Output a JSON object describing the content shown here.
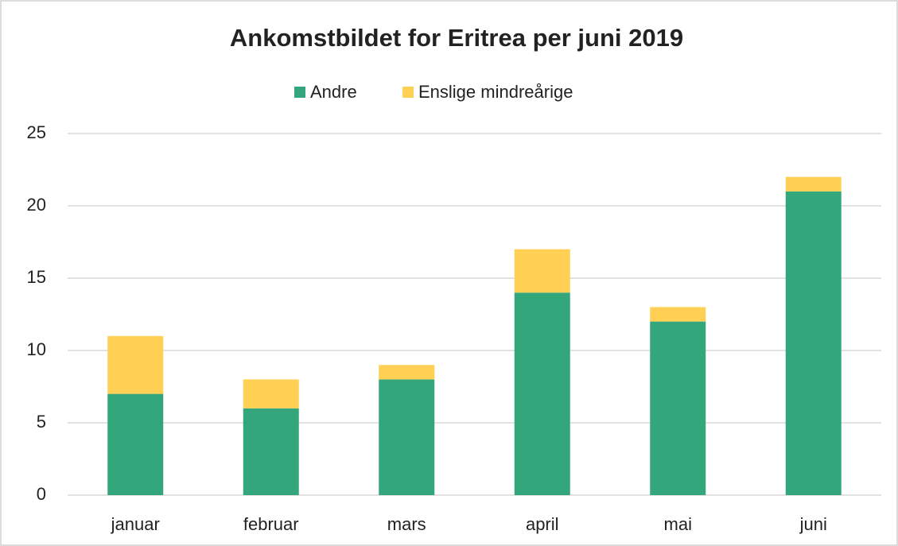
{
  "chart_data": {
    "type": "stacked_bar",
    "title": "Ankomstbildet for Eritrea per juni 2019",
    "categories": [
      "januar",
      "februar",
      "mars",
      "april",
      "mai",
      "juni"
    ],
    "series": [
      {
        "name": "Andre",
        "color": "#33a77b",
        "values": [
          7,
          6,
          8,
          14,
          12,
          21
        ]
      },
      {
        "name": "Enslige mindreårige",
        "color": "#ffd054",
        "values": [
          4,
          2,
          1,
          3,
          1,
          1
        ]
      }
    ],
    "ylim": [
      0,
      25
    ],
    "yticks": [
      0,
      5,
      10,
      15,
      20,
      25
    ],
    "grid": true,
    "legend": "top"
  }
}
